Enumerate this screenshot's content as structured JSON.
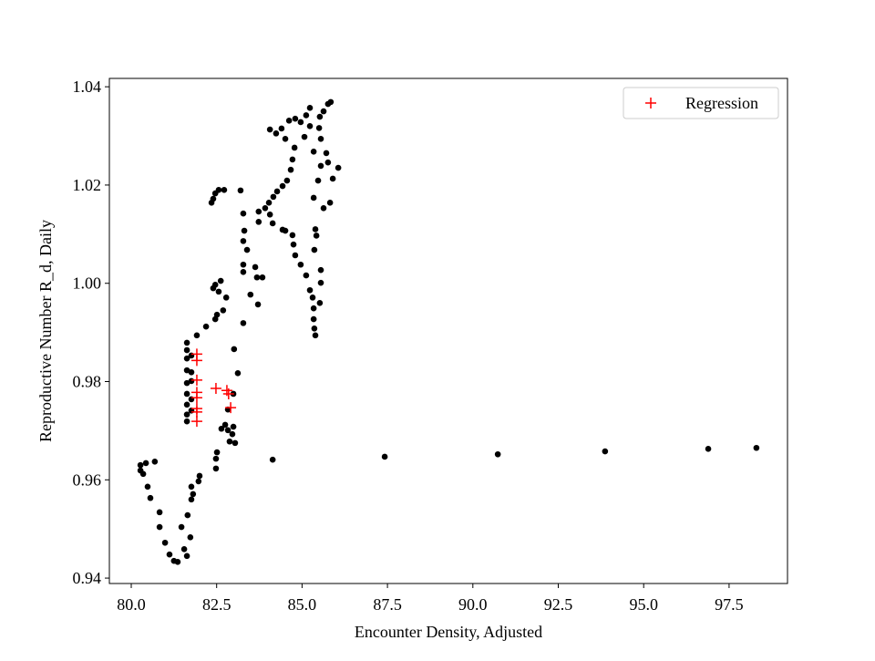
{
  "chart_data": {
    "type": "scatter",
    "x_label": "Encounter Density, Adjusted",
    "y_label": "Reproductive Number R_d, Daily",
    "xlim": [
      79.36,
      99.21
    ],
    "ylim": [
      0.9389,
      1.0417
    ],
    "xticks": [
      {
        "value": 80,
        "label": "80.0"
      },
      82.5,
      {
        "value": 85,
        "label": "85.0"
      },
      87.5,
      {
        "value": 90,
        "label": "90.0"
      },
      92.5,
      {
        "value": 95,
        "label": "95.0"
      },
      97.5
    ],
    "yticks": [
      0.94,
      0.96,
      0.98,
      {
        "value": 1,
        "label": "1.00"
      },
      1.02,
      1.04
    ],
    "legend": "upper right",
    "series": [
      {
        "color": "#000000",
        "marker": "dot",
        "x": [
          84.14,
          87.42,
          90.73,
          93.87,
          96.89,
          98.3,
          80.27,
          80.27,
          80.35,
          80.43,
          80.48,
          80.56,
          80.69,
          80.83,
          80.83,
          80.99,
          81.12,
          81.25,
          81.36,
          81.47,
          81.55,
          81.63,
          81.65,
          81.73,
          81.76,
          81.81,
          81.76,
          81.97,
          82.0,
          81.63,
          81.63,
          81.63,
          81.63,
          81.63,
          81.63,
          81.63,
          81.63,
          81.63,
          81.76,
          81.76,
          81.76,
          81.76,
          81.76,
          81.92,
          82.19,
          82.46,
          82.51,
          82.69,
          82.4,
          82.46,
          82.56,
          82.62,
          82.78,
          82.35,
          82.46,
          82.56,
          82.72,
          82.4,
          82.48,
          82.48,
          82.51,
          82.64,
          82.75,
          82.83,
          82.96,
          82.99,
          82.88,
          83.04,
          82.99,
          82.83,
          83.01,
          83.12,
          83.2,
          83.28,
          83.31,
          83.28,
          83.28,
          83.28,
          83.39,
          83.28,
          83.49,
          83.63,
          83.68,
          83.84,
          83.71,
          83.73,
          83.73,
          83.92,
          84.03,
          84.16,
          84.27,
          84.43,
          84.56,
          84.67,
          84.72,
          84.78,
          84.06,
          84.24,
          84.4,
          84.51,
          84.62,
          84.8,
          84.96,
          85.12,
          85.23,
          84.06,
          84.14,
          84.43,
          84.51,
          84.72,
          84.75,
          84.8,
          84.96,
          85.12,
          85.23,
          85.31,
          85.34,
          85.34,
          85.36,
          85.39,
          85.52,
          85.55,
          85.55,
          85.36,
          85.42,
          85.34,
          85.47,
          85.39,
          85.63,
          85.82,
          85.34,
          85.55,
          85.5,
          85.52,
          85.63,
          85.76,
          85.84,
          85.55,
          85.71,
          85.76,
          86.06,
          85.9,
          85.07,
          85.23
        ],
        "values": [
          0.9641,
          0.9647,
          0.9652,
          0.9658,
          0.9663,
          0.9665,
          0.963,
          0.9619,
          0.9612,
          0.9634,
          0.9586,
          0.9563,
          0.9637,
          0.9534,
          0.9504,
          0.9472,
          0.9448,
          0.9435,
          0.9433,
          0.9504,
          0.9459,
          0.9445,
          0.9528,
          0.9483,
          0.956,
          0.9571,
          0.9586,
          0.9597,
          0.9608,
          0.9879,
          0.9864,
          0.9847,
          0.9823,
          0.9797,
          0.9775,
          0.9753,
          0.9733,
          0.9719,
          0.9853,
          0.9819,
          0.9801,
          0.9764,
          0.9741,
          0.9894,
          0.9912,
          0.9927,
          0.9936,
          0.9945,
          0.999,
          0.9997,
          0.9983,
          1.0005,
          0.9971,
          1.0164,
          1.0183,
          1.019,
          1.019,
          1.0172,
          0.9623,
          0.9643,
          0.9656,
          0.9704,
          0.9712,
          0.9701,
          0.9693,
          0.9708,
          0.9678,
          0.9675,
          0.9775,
          0.9743,
          0.9866,
          0.9817,
          1.0189,
          1.0142,
          1.0107,
          1.0086,
          1.0038,
          1.0023,
          1.0068,
          0.9919,
          0.9977,
          1.0033,
          1.0012,
          1.0012,
          0.9957,
          1.0125,
          1.0146,
          1.0153,
          1.0164,
          1.0176,
          1.0187,
          1.0198,
          1.0209,
          1.0231,
          1.0252,
          1.0276,
          1.0313,
          1.0305,
          1.0315,
          1.0294,
          1.0331,
          1.0335,
          1.0328,
          1.0342,
          1.0357,
          1.014,
          1.0122,
          1.0109,
          1.0107,
          1.0098,
          1.0079,
          1.0057,
          1.0038,
          1.0016,
          0.9986,
          0.9971,
          0.9949,
          0.9927,
          0.9908,
          0.9894,
          0.996,
          1.0001,
          1.0027,
          1.0068,
          1.0097,
          1.0174,
          1.0209,
          1.011,
          1.0153,
          1.0164,
          1.0268,
          1.0294,
          1.0316,
          1.0339,
          1.035,
          1.0365,
          1.0369,
          1.0239,
          1.0265,
          1.0246,
          1.0235,
          1.0213,
          1.0298,
          1.032
        ]
      },
      {
        "name": "Regression",
        "color": "#ff0000",
        "marker": "plus",
        "x": [
          81.92,
          81.92,
          81.92,
          81.92,
          81.92,
          81.92,
          81.92,
          81.92,
          82.48,
          82.8,
          82.85,
          82.91
        ],
        "values": [
          0.9856,
          0.9843,
          0.9803,
          0.9778,
          0.9767,
          0.9745,
          0.9738,
          0.9719,
          0.9786,
          0.9782,
          0.9775,
          0.9747
        ]
      }
    ]
  }
}
